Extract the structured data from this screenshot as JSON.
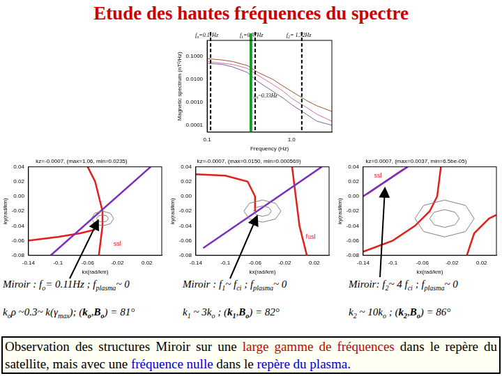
{
  "header": {
    "title": "Etude des hautes fréquences du spectre"
  },
  "chart_data": [
    {
      "type": "line",
      "log": true,
      "grid": false,
      "x_label": "Frequency (Hz)",
      "y_label": "Magnetic spectrum (nT²/Hz)",
      "xlim": [
        0.1,
        3
      ],
      "xticks": [
        0.1,
        {
          "value": 1,
          "label": "1.0"
        }
      ],
      "ylim": [
        5e-05,
        0.5
      ],
      "yticks": [
        {
          "value": 0.0001,
          "label": "0.0001"
        },
        {
          "value": 0.001,
          "label": "0.0010"
        },
        {
          "value": 0.01,
          "label": "0.0100"
        },
        {
          "value": 0.1,
          "label": "0.1000"
        }
      ],
      "x": [
        0.1,
        0.15,
        0.2,
        0.3,
        0.4,
        0.6,
        0.8,
        1.0,
        1.5,
        2,
        3
      ],
      "series": [
        {
          "color": "#a0522d",
          "values": [
            0.08,
            0.07,
            0.06,
            0.04,
            0.02,
            0.01,
            0.005,
            0.003,
            0.0012,
            0.0007,
            0.0004
          ]
        },
        {
          "color": "#d070a0",
          "values": [
            0.06,
            0.05,
            0.045,
            0.03,
            0.015,
            0.006,
            0.003,
            0.0015,
            0.0006,
            0.0003,
            0.00015
          ]
        },
        {
          "color": "#8060a0",
          "values": [
            0.05,
            0.045,
            0.035,
            0.02,
            0.008,
            0.003,
            0.0015,
            0.0008,
            0.0003,
            0.00015,
            0.0001
          ]
        }
      ],
      "markers": [
        {
          "x": 0.11,
          "color": "#000000",
          "line_style": "dashed",
          "label": [
            {
              "t": "f"
            },
            {
              "t": "o",
              "sub": true
            },
            {
              "t": "=0.11Hz"
            }
          ]
        },
        {
          "x": 0.37,
          "color": "#000000",
          "line_style": "dashed",
          "label": [
            {
              "t": "f"
            },
            {
              "t": "1",
              "sub": true
            },
            {
              "t": "=0.37Hz"
            }
          ]
        },
        {
          "x": 1.32,
          "color": "#000000",
          "line_style": "dashed",
          "label": [
            {
              "t": "f"
            },
            {
              "t": "2",
              "sub": true
            },
            {
              "t": "= 1.32Hz"
            }
          ]
        },
        {
          "x": 0.33,
          "color": "#1a9e2a",
          "line_style": "solid",
          "label": [
            {
              "t": "f"
            },
            {
              "t": "ci",
              "sub": true
            },
            {
              "t": "~0.33Hz"
            }
          ]
        }
      ]
    },
    {
      "type": "contour",
      "grid": false,
      "title": "kz=-0.0007, (max=1.06, min=0.0235)",
      "x_label": "kx(rad/km)",
      "y_label": "ky(rad/km)",
      "xlim": [
        -0.14,
        0.04
      ],
      "xticks": [
        -0.14,
        -0.1,
        -0.06,
        -0.02,
        0.02
      ],
      "ylim": [
        -0.08,
        0.04
      ],
      "yticks": [
        -0.08,
        -0.06,
        -0.04,
        -0.02,
        {
          "value": 0,
          "label": "0.00"
        },
        0.02,
        0.04
      ],
      "contours": {
        "color": "#808080",
        "levels": [
          [
            [
              -0.025,
              -0.03
            ],
            [
              -0.0294,
              -0.0229
            ],
            [
              -0.04,
              -0.02
            ],
            [
              -0.0506,
              -0.0229
            ],
            [
              -0.055,
              -0.03
            ],
            [
              -0.0506,
              -0.0371
            ],
            [
              -0.04,
              -0.04
            ],
            [
              -0.0294,
              -0.0371
            ],
            [
              -0.025,
              -0.03
            ]
          ],
          [
            [
              -0.032,
              -0.03
            ],
            [
              -0.0343,
              -0.0265
            ],
            [
              -0.04,
              -0.025
            ],
            [
              -0.0457,
              -0.0265
            ],
            [
              -0.048,
              -0.03
            ],
            [
              -0.0457,
              -0.0335
            ],
            [
              -0.04,
              -0.035
            ],
            [
              -0.0343,
              -0.0335
            ],
            [
              -0.032,
              -0.03
            ]
          ]
        ]
      },
      "lines": [
        {
          "color": "#7b2fbe",
          "points": [
            [
              -0.11,
              -0.08
            ],
            [
              0.025,
              0.04
            ]
          ]
        },
        {
          "color": "#e0201a",
          "points": [
            [
              -0.06,
              0.04
            ],
            [
              -0.05,
              0.02
            ],
            [
              -0.045,
              0.0
            ],
            [
              -0.04,
              -0.02
            ],
            [
              -0.04,
              -0.04
            ],
            [
              -0.045,
              -0.08
            ]
          ]
        },
        {
          "color": "#e0201a",
          "points": [
            [
              -0.14,
              -0.06
            ],
            [
              -0.1,
              -0.055
            ],
            [
              -0.07,
              -0.05
            ],
            [
              -0.05,
              -0.045
            ]
          ]
        }
      ],
      "annotations": [
        {
          "text": "ssl",
          "x": -0.02,
          "y": -0.065,
          "color": "#e0201a"
        }
      ],
      "caption": [
        [
          {
            "t": "Miroir : f"
          },
          {
            "t": "o",
            "sub": true
          },
          {
            "t": "= 0.11Hz ; f"
          },
          {
            "t": "plasma",
            "sub": true
          },
          {
            "t": "~ 0"
          }
        ],
        [
          {
            "t": "k"
          },
          {
            "t": "o",
            "sub": true
          },
          {
            "t": "ρ ~0.3~ k(γ"
          },
          {
            "t": "max",
            "sub": true
          },
          {
            "t": "); ("
          },
          {
            "t": "k",
            "b": true
          },
          {
            "t": "o",
            "sub": true,
            "b": true
          },
          {
            "t": ","
          },
          {
            "t": "B",
            "b": true
          },
          {
            "t": "o",
            "sub": true,
            "b": true
          },
          {
            "t": ") = 81°"
          }
        ]
      ]
    },
    {
      "type": "contour",
      "grid": false,
      "title": "kz=-0.0007, (max=0.0150, min=0.000569)",
      "x_label": "kx(rad/km)",
      "y_label": "ky(rad/km)",
      "xlim": [
        -0.14,
        0.04
      ],
      "xticks": [
        -0.14,
        -0.1,
        -0.06,
        -0.02,
        0.02
      ],
      "ylim": [
        -0.08,
        0.04
      ],
      "yticks": [
        -0.08,
        -0.06,
        -0.04,
        -0.02,
        {
          "value": 0,
          "label": "0.00"
        },
        0.02,
        0.04
      ],
      "contours": {
        "color": "#808080",
        "levels": [
          [
            [
              -0.025,
              -0.02
            ],
            [
              -0.0323,
              -0.0094
            ],
            [
              -0.05,
              -0.005
            ],
            [
              -0.0677,
              -0.0094
            ],
            [
              -0.075,
              -0.02
            ],
            [
              -0.0677,
              -0.0306
            ],
            [
              -0.05,
              -0.035
            ],
            [
              -0.0323,
              -0.0306
            ],
            [
              -0.025,
              -0.02
            ]
          ],
          [
            [
              -0.038,
              -0.02
            ],
            [
              -0.0415,
              -0.015
            ],
            [
              -0.05,
              -0.013
            ],
            [
              -0.0585,
              -0.015
            ],
            [
              -0.062,
              -0.02
            ],
            [
              -0.0585,
              -0.025
            ],
            [
              -0.05,
              -0.027
            ],
            [
              -0.0415,
              -0.025
            ],
            [
              -0.038,
              -0.02
            ]
          ]
        ]
      },
      "lines": [
        {
          "color": "#7b2fbe",
          "points": [
            [
              -0.13,
              -0.07
            ],
            [
              0.03,
              0.04
            ]
          ]
        },
        {
          "color": "#e0201a",
          "points": [
            [
              -0.14,
              0.03
            ],
            [
              -0.1,
              0.028
            ],
            [
              -0.07,
              0.02
            ],
            [
              -0.06,
              0.0
            ],
            [
              -0.06,
              -0.02
            ]
          ]
        },
        {
          "color": "#e0201a",
          "points": [
            [
              -0.01,
              0.04
            ],
            [
              -0.005,
              0.0
            ],
            [
              0.0,
              -0.04
            ],
            [
              0.01,
              -0.08
            ]
          ]
        }
      ],
      "annotations": [
        {
          "text": "fusl",
          "x": 0.015,
          "y": -0.055,
          "color": "#e0201a"
        }
      ],
      "caption": [
        [
          {
            "t": "Miroir : f"
          },
          {
            "t": "1",
            "sub": true
          },
          {
            "t": "~ f"
          },
          {
            "t": "ci",
            "sub": true
          },
          {
            "t": " ; f"
          },
          {
            "t": "plasma",
            "sub": true
          },
          {
            "t": "~ 0"
          }
        ],
        [
          {
            "t": "k"
          },
          {
            "t": "1",
            "sub": true
          },
          {
            "t": " ~ 3k"
          },
          {
            "t": "o",
            "sub": true
          },
          {
            "t": " ; ("
          },
          {
            "t": "k",
            "b": true
          },
          {
            "t": "1",
            "sub": true,
            "b": true
          },
          {
            "t": ","
          },
          {
            "t": "B",
            "b": true
          },
          {
            "t": "o",
            "sub": true,
            "b": true
          },
          {
            "t": ") = 82°"
          }
        ]
      ]
    },
    {
      "type": "contour",
      "grid": false,
      "title": "kz=0.0007, (max=0.0037, min=6.5be-05)",
      "x_label": "kx(rad/km)",
      "y_label": "ky(rad/km)",
      "xlim": [
        -0.14,
        0.04
      ],
      "xticks": [
        -0.14,
        -0.1,
        -0.06,
        -0.02,
        0.02
      ],
      "ylim": [
        -0.08,
        0.04
      ],
      "yticks": [
        -0.08,
        -0.06,
        -0.04,
        -0.02,
        {
          "value": 0,
          "label": "0.00"
        },
        0.02,
        0.04
      ],
      "contours": {
        "color": "#808080",
        "levels": [
          [
            [
              0.01,
              -0.03
            ],
            [
              -0.0017,
              -0.0123
            ],
            [
              -0.03,
              -0.005
            ],
            [
              -0.0583,
              -0.0123
            ],
            [
              -0.07,
              -0.03
            ],
            [
              -0.0583,
              -0.0477
            ],
            [
              -0.03,
              -0.055
            ],
            [
              -0.0017,
              -0.0477
            ],
            [
              0.01,
              -0.03
            ]
          ],
          [
            [
              -0.01,
              -0.03
            ],
            [
              -0.0159,
              -0.0215
            ],
            [
              -0.03,
              -0.018
            ],
            [
              -0.0441,
              -0.0215
            ],
            [
              -0.05,
              -0.03
            ],
            [
              -0.0441,
              -0.0385
            ],
            [
              -0.03,
              -0.042
            ],
            [
              -0.0159,
              -0.0385
            ],
            [
              -0.01,
              -0.03
            ]
          ]
        ]
      },
      "lines": [
        {
          "color": "#7b2fbe",
          "points": [
            [
              -0.14,
              0.0
            ],
            [
              -0.08,
              0.04
            ]
          ]
        },
        {
          "color": "#e0201a",
          "points": [
            [
              -0.135,
              0.003
            ],
            [
              -0.085,
              0.037
            ]
          ]
        },
        {
          "color": "#e0201a",
          "points": [
            [
              -0.14,
              -0.075
            ],
            [
              -0.1,
              -0.06
            ],
            [
              -0.07,
              -0.04
            ],
            [
              -0.05,
              -0.02
            ],
            [
              -0.04,
              0.0
            ],
            [
              -0.035,
              0.04
            ]
          ]
        },
        {
          "color": "#e0201a",
          "points": [
            [
              0.0,
              -0.08
            ],
            [
              0.01,
              -0.05
            ],
            [
              0.03,
              -0.03
            ],
            [
              0.04,
              -0.025
            ]
          ]
        }
      ],
      "annotations": [
        {
          "text": "ssl",
          "x": -0.12,
          "y": 0.028,
          "color": "#e0201a"
        }
      ],
      "caption": [
        [
          {
            "t": "Miroir: f"
          },
          {
            "t": "2",
            "sub": true
          },
          {
            "t": "~ 4 f"
          },
          {
            "t": "ci",
            "sub": true
          },
          {
            "t": " ; f"
          },
          {
            "t": "plasma",
            "sub": true
          },
          {
            "t": "~ 0"
          }
        ],
        [
          {
            "t": "k"
          },
          {
            "t": "2",
            "sub": true
          },
          {
            "t": " ~ 10k"
          },
          {
            "t": "o",
            "sub": true
          },
          {
            "t": " ; ("
          },
          {
            "t": "k",
            "b": true
          },
          {
            "t": "2",
            "sub": true,
            "b": true
          },
          {
            "t": ","
          },
          {
            "t": "B",
            "b": true
          },
          {
            "t": "o",
            "sub": true,
            "b": true
          },
          {
            "t": ") = 86°"
          }
        ]
      ]
    }
  ],
  "conclusion": [
    {
      "t": "Observation des structures Miroir sur une "
    },
    {
      "t": "large gamme de fréquences",
      "color": "#cc0000"
    },
    {
      "t": " dans le repère du satellite, mais avec une "
    },
    {
      "t": "fréquence nulle",
      "color": "#0000cc"
    },
    {
      "t": " dans le "
    },
    {
      "t": "repère du plasma.",
      "color": "#0000cc"
    }
  ]
}
